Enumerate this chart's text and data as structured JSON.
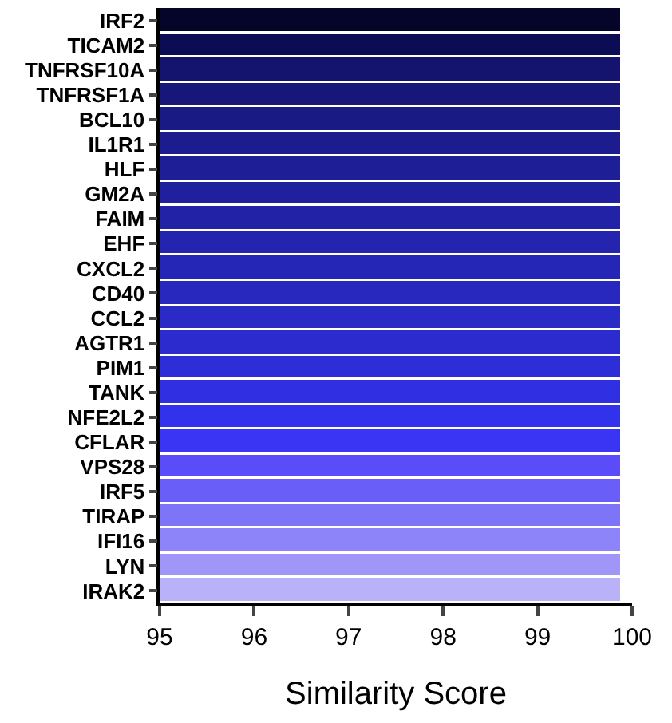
{
  "chart_data": {
    "type": "bar",
    "orientation": "horizontal",
    "xlabel": "Similarity Score",
    "categories": [
      "IRF2",
      "TICAM2",
      "TNFRSF10A",
      "TNFRSF1A",
      "BCL10",
      "IL1R1",
      "HLF",
      "GM2A",
      "FAIM",
      "EHF",
      "CXCL2",
      "CD40",
      "CCL2",
      "AGTR1",
      "PIM1",
      "TANK",
      "NFE2L2",
      "CFLAR",
      "VPS28",
      "IRF5",
      "TIRAP",
      "IFI16",
      "LYN",
      "IRAK2"
    ],
    "values": [
      99.9,
      99.9,
      99.9,
      99.9,
      99.9,
      99.9,
      99.9,
      99.9,
      99.9,
      99.9,
      99.9,
      99.9,
      99.9,
      99.9,
      99.9,
      99.9,
      99.9,
      99.9,
      99.9,
      99.9,
      99.9,
      99.9,
      99.9,
      99.9
    ],
    "colors": [
      "#05052a",
      "#0c0c55",
      "#14146f",
      "#17177a",
      "#1a1a85",
      "#1c1c8e",
      "#1e1e96",
      "#20209e",
      "#2222a6",
      "#2424ae",
      "#2626b6",
      "#2828be",
      "#2a2ac6",
      "#2c2cce",
      "#2e2ed8",
      "#3030e2",
      "#3232ec",
      "#3a34f4",
      "#5a4cf8",
      "#6a5ef8",
      "#7e74f8",
      "#8c84f8",
      "#a096f8",
      "#bab2f8"
    ],
    "xlim": [
      95,
      100
    ],
    "xticks": [
      95,
      96,
      97,
      98,
      99,
      100
    ]
  }
}
